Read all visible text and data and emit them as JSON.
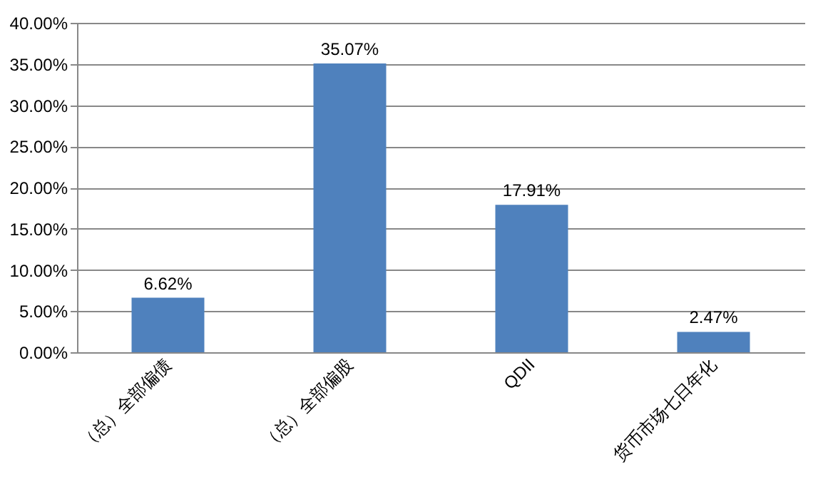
{
  "chart_data": {
    "type": "bar",
    "categories": [
      "（总）全部偏债",
      "（总）全部偏股",
      "QDII",
      "货币市场七日年化"
    ],
    "values": [
      6.62,
      35.07,
      17.91,
      2.47
    ],
    "value_labels": [
      "6.62%",
      "35.07%",
      "17.91%",
      "2.47%"
    ],
    "color": "#4f81bd",
    "ylim": [
      0,
      40
    ],
    "yticks": [
      {
        "value": 0,
        "label": "0.00%"
      },
      {
        "value": 5,
        "label": "5.00%"
      },
      {
        "value": 10,
        "label": "10.00%"
      },
      {
        "value": 15,
        "label": "15.00%"
      },
      {
        "value": 20,
        "label": "20.00%"
      },
      {
        "value": 25,
        "label": "25.00%"
      },
      {
        "value": 30,
        "label": "30.00%"
      },
      {
        "value": 35,
        "label": "35.00%"
      },
      {
        "value": 40,
        "label": "40.00%"
      }
    ],
    "grid": "y"
  }
}
